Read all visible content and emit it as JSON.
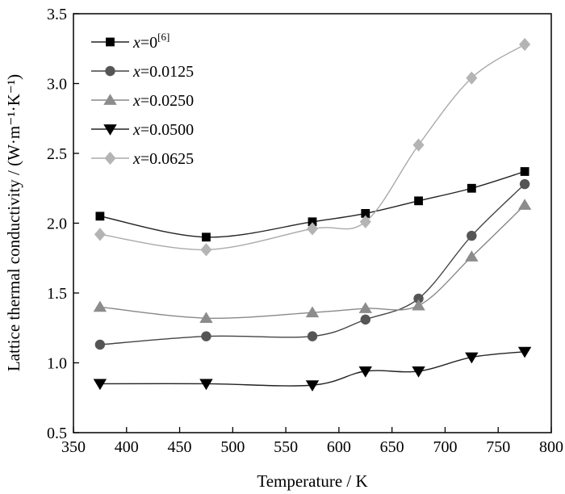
{
  "chart_data": {
    "type": "line",
    "xlabel": "Temperature / K",
    "ylabel": "Lattice thermal conductivity / (W·m⁻¹·K⁻¹)",
    "xlim": [
      350,
      800
    ],
    "ylim": [
      0.5,
      3.5
    ],
    "xticks": [
      "350",
      "400",
      "450",
      "500",
      "550",
      "600",
      "650",
      "700",
      "750",
      "800"
    ],
    "yticks": [
      "0.5",
      "1.0",
      "1.5",
      "2.0",
      "2.5",
      "3.0",
      "3.5"
    ],
    "legend_position": "top-left",
    "grid": false,
    "x": [
      375,
      475,
      575,
      625,
      675,
      725,
      775
    ],
    "series": [
      {
        "name": "x=0[6]",
        "legend": {
          "var": "x",
          "rest": "=0",
          "sup": "[6]"
        },
        "marker": "square",
        "color": "#000000",
        "line_color": "#222222",
        "values": [
          2.05,
          1.9,
          2.01,
          2.07,
          2.16,
          2.25,
          2.37
        ]
      },
      {
        "name": "x=0.0125",
        "legend": {
          "var": "x",
          "rest": "=0.0125",
          "sup": ""
        },
        "marker": "circle",
        "color": "#555555",
        "line_color": "#444444",
        "values": [
          1.13,
          1.19,
          1.19,
          1.31,
          1.46,
          1.91,
          2.28
        ]
      },
      {
        "name": "x=0.0250",
        "legend": {
          "var": "x",
          "rest": "=0.0250",
          "sup": ""
        },
        "marker": "triangle-up",
        "color": "#8c8c8c",
        "line_color": "#888888",
        "values": [
          1.4,
          1.32,
          1.36,
          1.39,
          1.41,
          1.76,
          2.13
        ]
      },
      {
        "name": "x=0.0500",
        "legend": {
          "var": "x",
          "rest": "=0.0500",
          "sup": ""
        },
        "marker": "triangle-down",
        "color": "#000000",
        "line_color": "#222222",
        "values": [
          0.85,
          0.85,
          0.84,
          0.94,
          0.94,
          1.04,
          1.08
        ]
      },
      {
        "name": "x=0.0625",
        "legend": {
          "var": "x",
          "rest": "=0.0625",
          "sup": ""
        },
        "marker": "diamond",
        "color": "#b4b4b4",
        "line_color": "#aaaaaa",
        "values": [
          1.92,
          1.81,
          1.96,
          2.01,
          2.56,
          3.04,
          3.28
        ]
      }
    ]
  }
}
